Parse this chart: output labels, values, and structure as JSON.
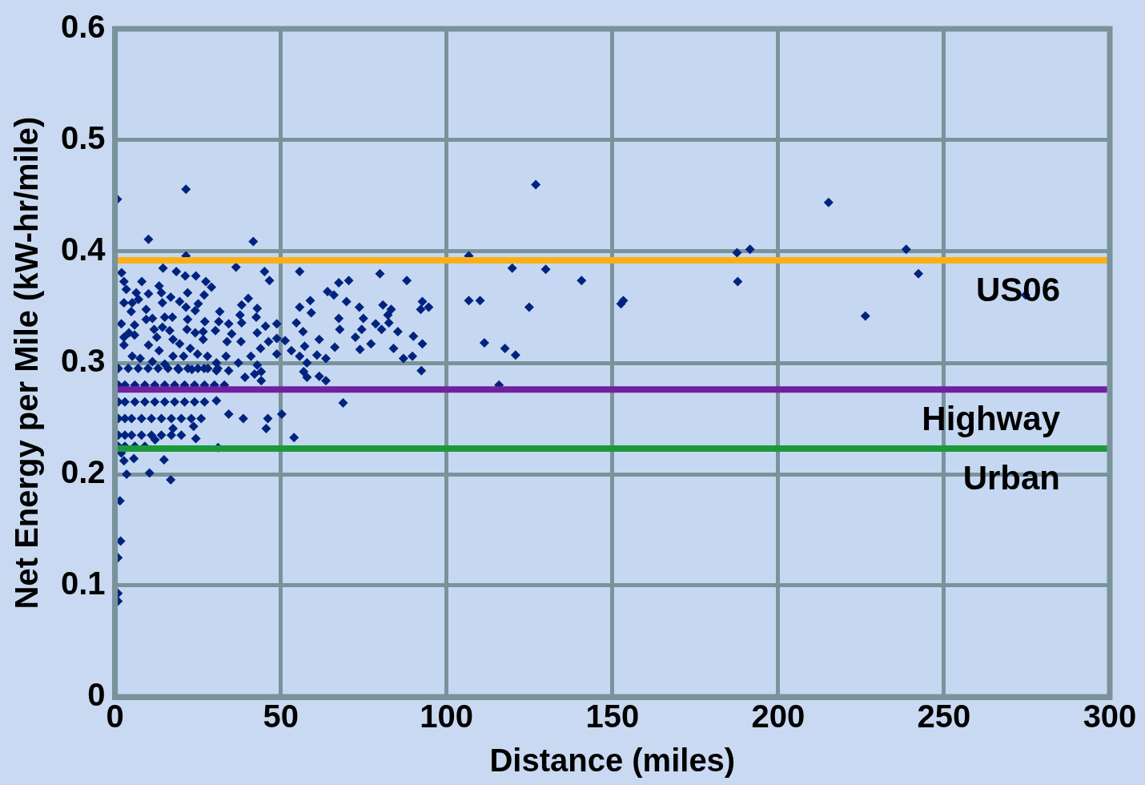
{
  "chart_data": {
    "type": "scatter",
    "xlabel": "Distance (miles)",
    "ylabel": "Net Energy per Mile (kW-hr/mile)",
    "xlim": [
      0,
      300
    ],
    "xticks": [
      0,
      50,
      100,
      150,
      200,
      250,
      300
    ],
    "ylim": [
      0,
      0.6
    ],
    "yticks": [
      0,
      0.1,
      0.2,
      0.3,
      0.4,
      0.5,
      0.6
    ],
    "grid": true,
    "marker": "diamond",
    "series": [
      {
        "color": "#00237f",
        "x": [
          21.4,
          126.9,
          215.2,
          0.7,
          10.1,
          41.7,
          21.4,
          106.7,
          187.6,
          191.5,
          238.6,
          242.3,
          187.8,
          226.3,
          140.7,
          129.9,
          119.8,
          79.9,
          88,
          152.6,
          153.3,
          106.7,
          110.1,
          124.9,
          111.4,
          117.6,
          120.8,
          115.8,
          92.4,
          92.7,
          94.6,
          274.6,
          55.7,
          67.5,
          70.5,
          64.1,
          66,
          58.9,
          69.8,
          73.7,
          55.7,
          80.8,
          83.3,
          92.2,
          59.2,
          67.5,
          74.9,
          82.3,
          54.7,
          78.6,
          67.8,
          74.4,
          80.4,
          82.6,
          85.3,
          56.7,
          61.6,
          90,
          72.5,
          57.2,
          66.3,
          77.2,
          92.7,
          73.9,
          84,
          53.2,
          60.9,
          55.7,
          63.6,
          87,
          89.7,
          57.9,
          56.9,
          57.9,
          61.6,
          63.6,
          68.8,
          2,
          36.5,
          14.5,
          18.5,
          21.2,
          24.4,
          27.4,
          29.1,
          45.1,
          46.6,
          8.1,
          2.7,
          13.3,
          3.4,
          6.4,
          10.1,
          14,
          21.9,
          16.8,
          26.9,
          40.2,
          19.5,
          7.1,
          2.7,
          5.2,
          14.3,
          25.1,
          38.2,
          42.9,
          21.4,
          9.4,
          4.9,
          24.2,
          31.6,
          37.7,
          11.3,
          15,
          17.3,
          21.9,
          42.6,
          1.9,
          5.9,
          9.4,
          27.1,
          34.3,
          38.2,
          31.3,
          45.4,
          48.8,
          11.8,
          14.3,
          16.5,
          21.7,
          24.2,
          26.6,
          30.3,
          35.2,
          42.9,
          4.2,
          5.9,
          12.6,
          17.5,
          19.5,
          22.7,
          26.6,
          33.8,
          38,
          41,
          43.9,
          46.3,
          48.8,
          48.8,
          51.3,
          10.1,
          13.3,
          17.5,
          20.7,
          24.9,
          27.9,
          30.6,
          33.5,
          37.2,
          42.9,
          42.1,
          44.1,
          44.1,
          39.2,
          34.3,
          30.6,
          26.9,
          23.2,
          19.2,
          15,
          11.3,
          7.6,
          5.2,
          2.7,
          2.7,
          1,
          4,
          7,
          10,
          13,
          16,
          19,
          22,
          25,
          28,
          31,
          1,
          3,
          6,
          9,
          12,
          15,
          18,
          21,
          24,
          27,
          30,
          33,
          1,
          3,
          6,
          9,
          12,
          15,
          18,
          21,
          24,
          27,
          1,
          3,
          5,
          8,
          11,
          14,
          17,
          20,
          23,
          26,
          1,
          3,
          5,
          8,
          11,
          14,
          17,
          20,
          1,
          3,
          6,
          9,
          30.6,
          34.3,
          38.7,
          46.1,
          45.6,
          50.3,
          54,
          24.4,
          23.7,
          31.1,
          14.8,
          10.4,
          16.8,
          3.5,
          5.7,
          2.7,
          1.9,
          12.1,
          17.5,
          1.5,
          1.7,
          0.9,
          0.9,
          0.9
        ],
        "values": [
          0.456,
          0.46,
          0.444,
          0.447,
          0.411,
          0.409,
          0.396,
          0.396,
          0.399,
          0.402,
          0.402,
          0.38,
          0.373,
          0.342,
          0.374,
          0.384,
          0.385,
          0.38,
          0.374,
          0.353,
          0.356,
          0.356,
          0.356,
          0.35,
          0.318,
          0.313,
          0.307,
          0.28,
          0.293,
          0.355,
          0.35,
          0.361,
          0.382,
          0.372,
          0.374,
          0.364,
          0.361,
          0.356,
          0.355,
          0.35,
          0.35,
          0.352,
          0.348,
          0.348,
          0.345,
          0.34,
          0.34,
          0.343,
          0.336,
          0.335,
          0.33,
          0.33,
          0.33,
          0.336,
          0.328,
          0.328,
          0.321,
          0.324,
          0.323,
          0.315,
          0.314,
          0.317,
          0.317,
          0.312,
          0.313,
          0.311,
          0.307,
          0.306,
          0.304,
          0.304,
          0.306,
          0.3,
          0.292,
          0.287,
          0.288,
          0.284,
          0.264,
          0.381,
          0.386,
          0.385,
          0.382,
          0.378,
          0.378,
          0.373,
          0.368,
          0.382,
          0.374,
          0.373,
          0.373,
          0.369,
          0.366,
          0.363,
          0.362,
          0.363,
          0.363,
          0.359,
          0.361,
          0.358,
          0.355,
          0.357,
          0.354,
          0.354,
          0.354,
          0.353,
          0.352,
          0.349,
          0.35,
          0.348,
          0.346,
          0.347,
          0.346,
          0.343,
          0.34,
          0.341,
          0.341,
          0.339,
          0.341,
          0.335,
          0.334,
          0.339,
          0.337,
          0.335,
          0.336,
          0.337,
          0.333,
          0.335,
          0.33,
          0.332,
          0.329,
          0.33,
          0.327,
          0.328,
          0.329,
          0.326,
          0.327,
          0.327,
          0.325,
          0.323,
          0.321,
          0.317,
          0.313,
          0.321,
          0.319,
          0.319,
          0.306,
          0.313,
          0.319,
          0.322,
          0.308,
          0.32,
          0.316,
          0.311,
          0.306,
          0.306,
          0.308,
          0.306,
          0.3,
          0.306,
          0.3,
          0.298,
          0.29,
          0.292,
          0.284,
          0.287,
          0.293,
          0.293,
          0.295,
          0.294,
          0.294,
          0.299,
          0.301,
          0.304,
          0.306,
          0.316,
          0.323,
          0.295,
          0.295,
          0.295,
          0.295,
          0.295,
          0.295,
          0.295,
          0.295,
          0.295,
          0.295,
          0.295,
          0.28,
          0.28,
          0.28,
          0.28,
          0.28,
          0.28,
          0.28,
          0.28,
          0.28,
          0.28,
          0.28,
          0.28,
          0.265,
          0.265,
          0.265,
          0.265,
          0.265,
          0.265,
          0.265,
          0.265,
          0.265,
          0.265,
          0.25,
          0.25,
          0.25,
          0.25,
          0.25,
          0.25,
          0.25,
          0.25,
          0.25,
          0.25,
          0.235,
          0.235,
          0.235,
          0.235,
          0.235,
          0.235,
          0.235,
          0.235,
          0.225,
          0.225,
          0.225,
          0.225,
          0.266,
          0.254,
          0.25,
          0.25,
          0.241,
          0.254,
          0.233,
          0.232,
          0.243,
          0.224,
          0.213,
          0.201,
          0.195,
          0.2,
          0.214,
          0.212,
          0.219,
          0.231,
          0.241,
          0.176,
          0.14,
          0.125,
          0.093,
          0.086
        ]
      }
    ],
    "ref_lines": [
      {
        "axis": "y",
        "value": 0.392,
        "label": "US06",
        "color": "#fdb015"
      },
      {
        "axis": "y",
        "value": 0.276,
        "label": "Highway",
        "color": "#7020a0"
      },
      {
        "axis": "y",
        "value": 0.223,
        "label": "Urban",
        "color": "#1a9a3a"
      }
    ]
  }
}
